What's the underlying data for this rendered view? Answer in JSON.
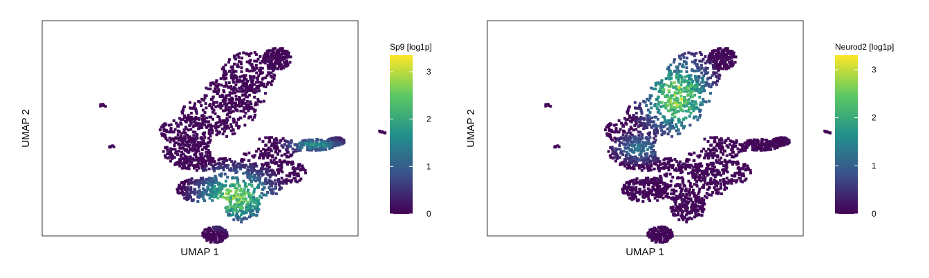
{
  "chart_data": [
    {
      "type": "scatter",
      "title": "",
      "xlabel": "UMAP 1",
      "ylabel": "UMAP 2",
      "legend": {
        "title": "Sp9 [log1p]",
        "ticks": [
          "0",
          "1",
          "2",
          "3"
        ],
        "range": [
          0,
          3.35
        ],
        "placement": "right",
        "colors": [
          "#440154",
          "#3b528b",
          "#21918c",
          "#5ec962",
          "#fde725"
        ]
      },
      "expression_hotspots": [
        {
          "region": "lower-center branch",
          "level": 2.6
        },
        {
          "region": "right arm",
          "level": 1.6
        }
      ]
    },
    {
      "type": "scatter",
      "title": "",
      "xlabel": "UMAP 1",
      "ylabel": "UMAP 2",
      "legend": {
        "title": "Neurod2 [log1p]",
        "ticks": [
          "0",
          "1",
          "2",
          "3"
        ],
        "range": [
          0,
          3.3
        ],
        "placement": "right",
        "colors": [
          "#440154",
          "#3b528b",
          "#21918c",
          "#5ec962",
          "#fde725"
        ]
      },
      "expression_hotspots": [
        {
          "region": "upper diagonal arm",
          "level": 2.6
        },
        {
          "region": "central loop",
          "level": 1.2
        }
      ]
    }
  ]
}
